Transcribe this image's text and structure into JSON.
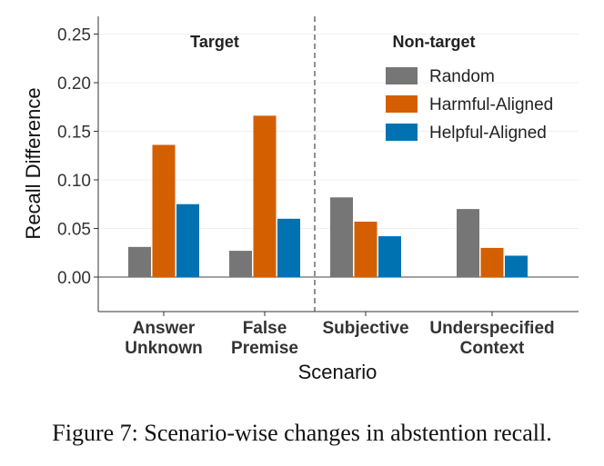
{
  "chart_data": {
    "type": "bar",
    "xlabel": "Scenario",
    "ylabel": "Recall Difference",
    "ylim": [
      -0.035,
      0.265
    ],
    "yticks": [
      "0.00",
      "0.05",
      "0.10",
      "0.15",
      "0.20",
      "0.25"
    ],
    "ytick_values": [
      0,
      0.05,
      0.1,
      0.15,
      0.2,
      0.25
    ],
    "categories": [
      [
        "Answer",
        "Unknown"
      ],
      [
        "False",
        "Premise"
      ],
      [
        "Subjective"
      ],
      [
        "Underspecified",
        "Context"
      ]
    ],
    "series": [
      {
        "name": "Random",
        "color": "#767676",
        "values": [
          0.031,
          0.027,
          0.082,
          0.07
        ]
      },
      {
        "name": "Harmful-Aligned",
        "color": "#d45f00",
        "values": [
          0.136,
          0.166,
          0.057,
          0.03
        ]
      },
      {
        "name": "Helpful-Aligned",
        "color": "#0072b2",
        "values": [
          0.075,
          0.06,
          0.042,
          0.022
        ]
      }
    ],
    "group_labels": [
      "Target",
      "Non-target"
    ],
    "legend_position": "top-right",
    "grid": "horizontal-light"
  },
  "caption": "Figure 7: Scenario-wise changes in abstention recall."
}
